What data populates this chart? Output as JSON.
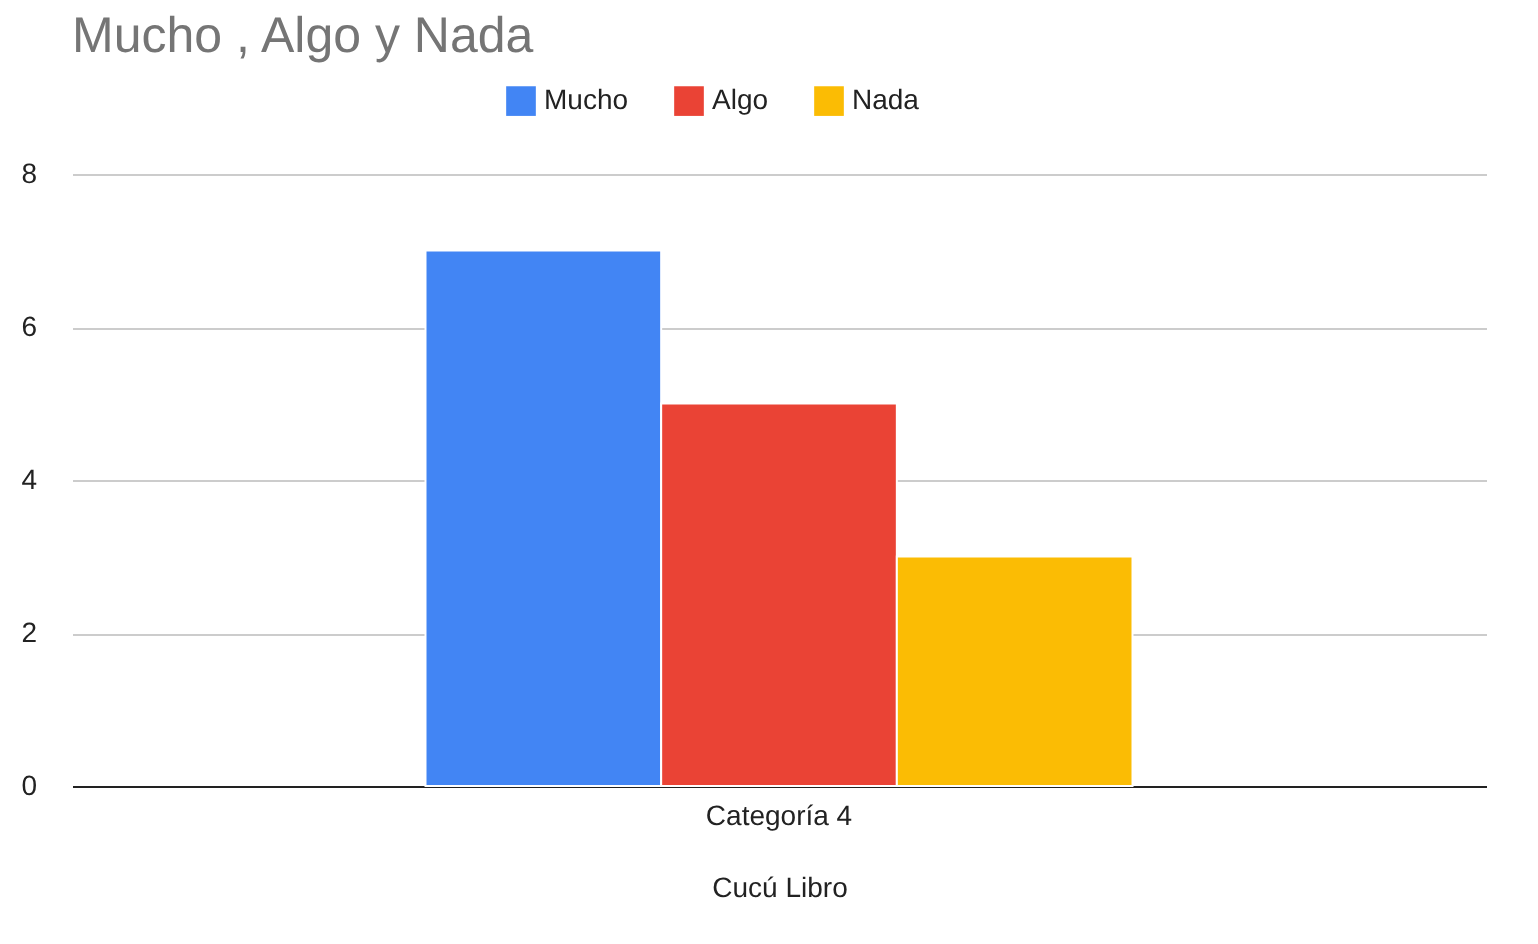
{
  "chart_data": {
    "type": "bar",
    "title": "Mucho , Algo  y Nada",
    "xlabel": "Cucú Libro",
    "categories": [
      "Categoría 4"
    ],
    "series": [
      {
        "name": "Mucho",
        "color": "#4285f4",
        "values": [
          7
        ]
      },
      {
        "name": "Algo",
        "color": "#ea4335",
        "values": [
          5
        ]
      },
      {
        "name": "Nada",
        "color": "#fbbc04",
        "values": [
          3
        ]
      }
    ],
    "ylim": [
      0,
      8
    ],
    "yticks": [
      0,
      2,
      4,
      6,
      8
    ],
    "grid": "y",
    "legend": "top"
  }
}
